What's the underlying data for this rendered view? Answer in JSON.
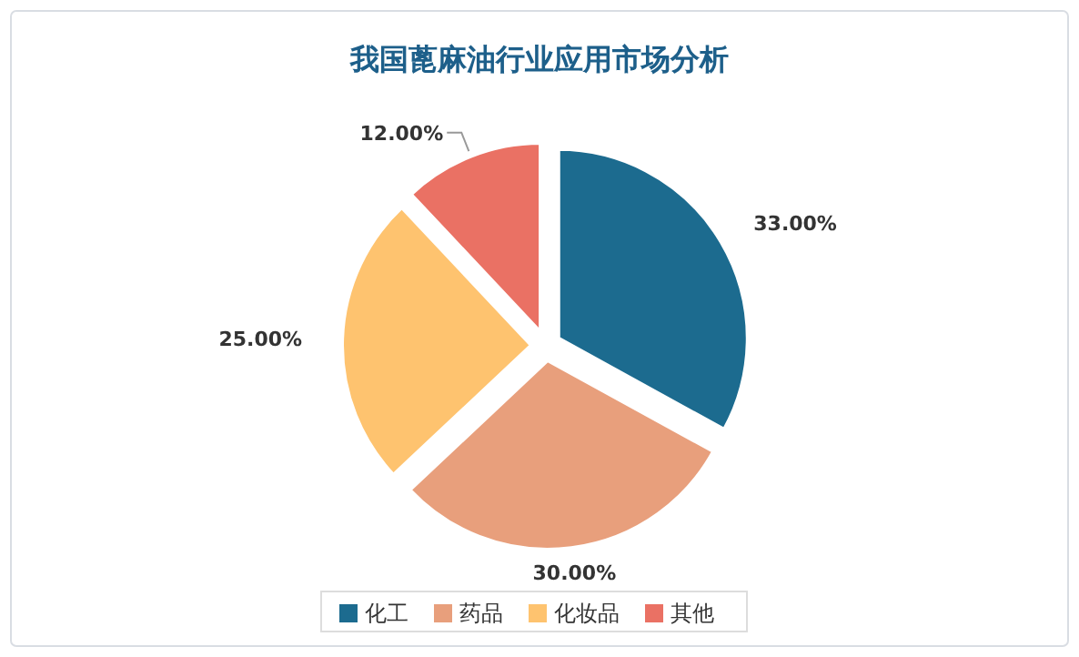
{
  "chart_data": {
    "type": "pie",
    "title": "我国蓖麻油行业应用市场分析",
    "categories": [
      "化工",
      "药品",
      "化妆品",
      "其他"
    ],
    "values": [
      33,
      30,
      25,
      12
    ],
    "colors": [
      "#1c6b8f",
      "#e89f7c",
      "#fec36f",
      "#ea7164"
    ],
    "value_labels": [
      "33.00%",
      "30.00%",
      "25.00%",
      "12.00%"
    ],
    "legend": "bottom"
  }
}
